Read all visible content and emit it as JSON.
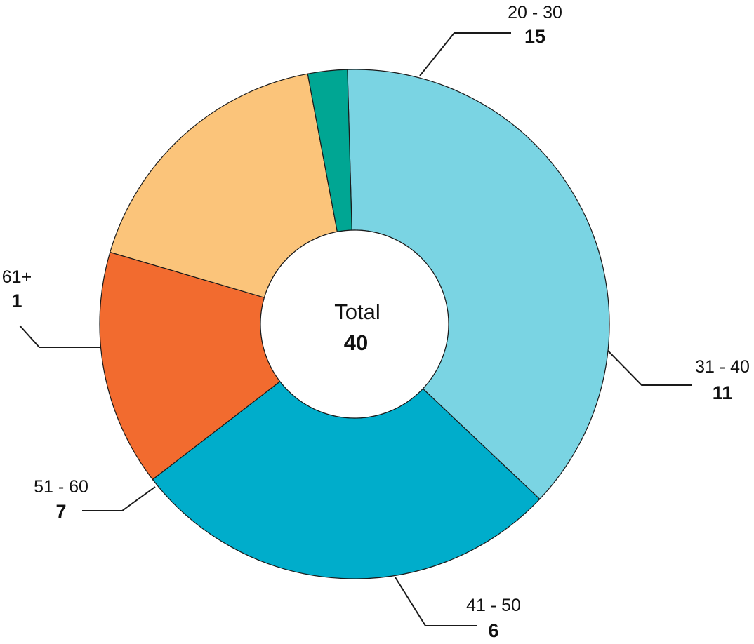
{
  "chart_data": {
    "type": "pie",
    "variant": "donut",
    "categories": [
      "20 - 30",
      "31 - 40",
      "41 - 50",
      "51 - 60",
      "61+"
    ],
    "values": [
      15,
      11,
      6,
      7,
      1
    ],
    "colors": [
      "#7ad4e3",
      "#00adcb",
      "#f26b2f",
      "#fbc47a",
      "#00a693"
    ],
    "center": {
      "label": "Total",
      "value": "40"
    },
    "legend": "none"
  }
}
